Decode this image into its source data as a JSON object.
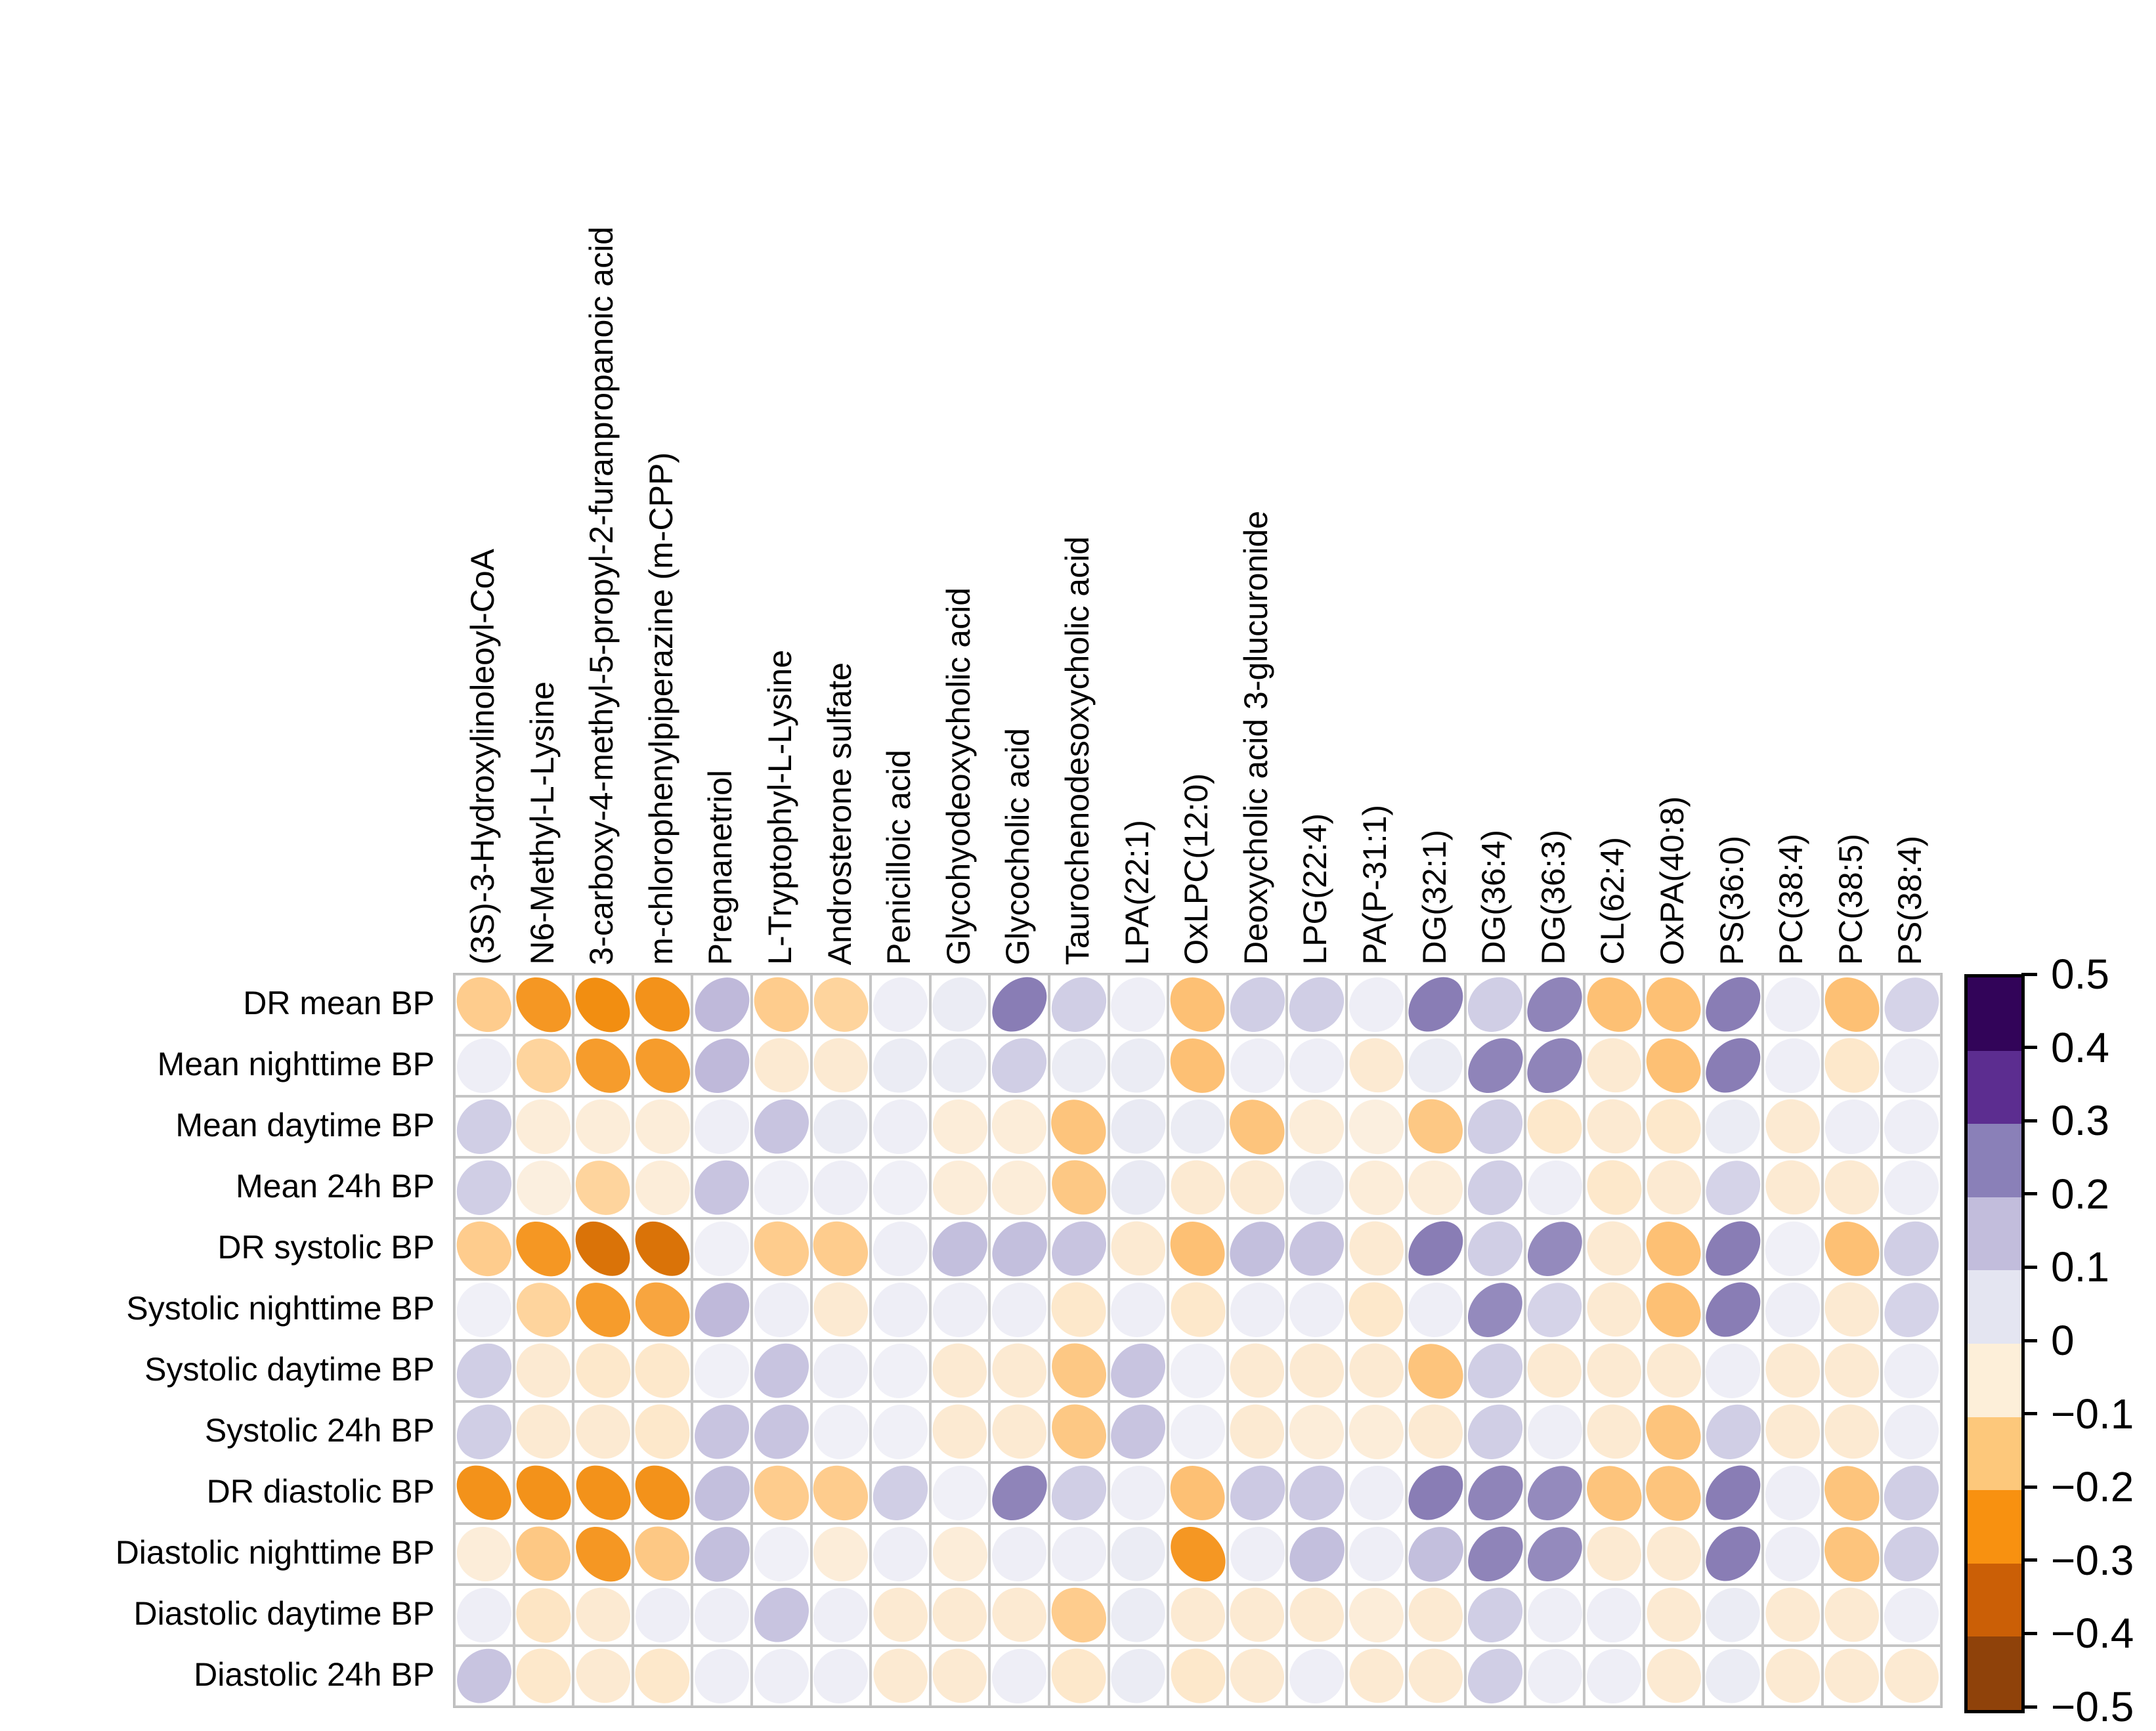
{
  "figure": {
    "background": "#ffffff",
    "grid_color": "#c5c5c5",
    "colorbar_border_color": "#000000",
    "text_color": "#000000"
  },
  "chart_data": {
    "type": "heatmap",
    "subtype": "correlation-ellipse-matrix",
    "title": "",
    "xlabel": "",
    "ylabel": "",
    "value_range": [
      -0.5,
      0.5
    ],
    "legend_position": "right",
    "grid": true,
    "rows": [
      "DR mean BP",
      "Mean nighttime BP",
      "Mean daytime BP",
      "Mean 24h BP",
      "DR systolic BP",
      "Systolic nighttime BP",
      "Systolic daytime BP",
      "Systolic 24h BP",
      "DR diastolic BP",
      "Diastolic nighttime BP",
      "Diastolic daytime BP",
      "Diastolic 24h BP"
    ],
    "columns": [
      "(3S)-3-Hydroxylinoleoyl-CoA",
      "N6-Methyl-L-Lysine",
      "3-carboxy-4-methyl-5-propyl-2-furanpropanoic acid",
      "m-chlorophenylpiperazine (m-CPP)",
      "Pregnanetriol",
      "L-Tryptophyl-L-Lysine",
      "Androsterone sulfate",
      "Penicilloic acid",
      "Glycohyodeoxycholic acid",
      "Glycocholic acid",
      "Taurochenodesoxycholic acid",
      "LPA(22:1)",
      "OxLPC(12:0)",
      "Deoxycholic acid 3-glucuronide",
      "LPG(22:4)",
      "PA(P-31:1)",
      "DG(32:1)",
      "DG(36:4)",
      "DG(36:3)",
      "CL(62:4)",
      "OxPA(40:8)",
      "PS(36:0)",
      "PC(38:4)",
      "PC(38:5)",
      "PS(38:4)"
    ],
    "values": [
      [
        -0.15,
        -0.27,
        -0.29,
        -0.28,
        0.18,
        -0.15,
        -0.13,
        0.05,
        0.06,
        0.28,
        0.14,
        0.05,
        -0.18,
        0.14,
        0.14,
        0.05,
        0.28,
        0.14,
        0.27,
        -0.18,
        -0.18,
        0.28,
        0.05,
        -0.18,
        0.13
      ],
      [
        0.05,
        -0.13,
        -0.26,
        -0.26,
        0.18,
        -0.06,
        -0.06,
        0.06,
        0.06,
        0.14,
        0.06,
        0.06,
        -0.18,
        0.05,
        0.05,
        -0.06,
        0.06,
        0.27,
        0.27,
        -0.06,
        -0.18,
        0.28,
        0.05,
        -0.07,
        0.05
      ],
      [
        0.14,
        -0.05,
        -0.05,
        -0.05,
        0.05,
        0.16,
        0.06,
        0.05,
        -0.05,
        -0.05,
        -0.17,
        0.07,
        0.06,
        -0.17,
        -0.05,
        -0.04,
        -0.16,
        0.14,
        -0.07,
        -0.06,
        -0.07,
        0.06,
        -0.06,
        0.05,
        0.05
      ],
      [
        0.14,
        -0.04,
        -0.13,
        -0.05,
        0.16,
        0.04,
        0.05,
        0.04,
        -0.05,
        -0.05,
        -0.16,
        0.07,
        -0.06,
        -0.06,
        0.06,
        -0.05,
        -0.05,
        0.14,
        0.05,
        -0.07,
        -0.06,
        0.13,
        -0.06,
        -0.06,
        0.05
      ],
      [
        -0.15,
        -0.27,
        -0.35,
        -0.35,
        0.04,
        -0.15,
        -0.15,
        0.05,
        0.17,
        0.17,
        0.16,
        -0.06,
        -0.18,
        0.17,
        0.16,
        -0.06,
        0.28,
        0.14,
        0.26,
        -0.06,
        -0.18,
        0.28,
        0.04,
        -0.18,
        0.14
      ],
      [
        0.04,
        -0.13,
        -0.26,
        -0.24,
        0.18,
        0.05,
        -0.06,
        0.05,
        0.05,
        0.05,
        -0.07,
        0.05,
        -0.07,
        0.05,
        0.05,
        -0.07,
        0.05,
        0.26,
        0.13,
        -0.06,
        -0.18,
        0.28,
        0.05,
        -0.06,
        0.13
      ],
      [
        0.14,
        -0.06,
        -0.07,
        -0.07,
        0.04,
        0.16,
        0.05,
        0.04,
        -0.06,
        -0.06,
        -0.16,
        0.16,
        0.04,
        -0.06,
        -0.06,
        -0.06,
        -0.17,
        0.14,
        -0.06,
        -0.06,
        -0.06,
        0.05,
        -0.06,
        -0.06,
        0.05
      ],
      [
        0.14,
        -0.06,
        -0.06,
        -0.07,
        0.16,
        0.16,
        0.04,
        0.04,
        -0.06,
        -0.06,
        -0.16,
        0.16,
        0.04,
        -0.06,
        -0.05,
        -0.05,
        -0.06,
        0.14,
        0.05,
        -0.06,
        -0.17,
        0.14,
        -0.06,
        -0.06,
        0.05
      ],
      [
        -0.28,
        -0.28,
        -0.28,
        -0.28,
        0.17,
        -0.15,
        -0.15,
        0.14,
        0.04,
        0.27,
        0.14,
        0.05,
        -0.18,
        0.15,
        0.15,
        0.05,
        0.28,
        0.27,
        0.26,
        -0.17,
        -0.17,
        0.28,
        0.05,
        -0.17,
        0.14
      ],
      [
        -0.05,
        -0.16,
        -0.27,
        -0.16,
        0.17,
        0.04,
        -0.05,
        0.05,
        -0.05,
        0.05,
        0.05,
        0.06,
        -0.27,
        0.05,
        0.17,
        0.05,
        0.17,
        0.27,
        0.26,
        -0.06,
        -0.06,
        0.28,
        0.05,
        -0.17,
        0.14
      ],
      [
        0.05,
        -0.08,
        -0.06,
        0.05,
        0.05,
        0.16,
        0.05,
        -0.06,
        -0.06,
        -0.06,
        -0.15,
        0.06,
        -0.06,
        -0.06,
        -0.06,
        -0.05,
        -0.06,
        0.14,
        0.05,
        0.05,
        -0.06,
        0.06,
        -0.06,
        -0.06,
        0.05
      ],
      [
        0.16,
        -0.07,
        -0.06,
        -0.07,
        0.05,
        0.05,
        0.05,
        -0.06,
        -0.06,
        0.05,
        -0.07,
        0.06,
        -0.07,
        -0.06,
        0.05,
        -0.06,
        -0.06,
        0.14,
        0.05,
        0.05,
        -0.06,
        0.06,
        -0.06,
        -0.06,
        -0.06
      ]
    ],
    "colorbar": {
      "tick_labels": [
        "0.5",
        "0.4",
        "0.3",
        "0.2",
        "0.1",
        "0",
        "−0.1",
        "−0.2",
        "−0.3",
        "−0.4",
        "−0.5"
      ],
      "segment_colors": [
        "#320459",
        "#5c2d90",
        "#8a80b8",
        "#c2bddc",
        "#e4e5f1",
        "#fdefd9",
        "#fdc87b",
        "#f89110",
        "#cb5f06",
        "#8f420a"
      ]
    },
    "palette_stops": [
      {
        "v": -0.5,
        "c": "#8f420a"
      },
      {
        "v": -0.4,
        "c": "#c35c08"
      },
      {
        "v": -0.3,
        "c": "#f18908"
      },
      {
        "v": -0.2,
        "c": "#fdb863"
      },
      {
        "v": -0.1,
        "c": "#fee0b6"
      },
      {
        "v": 0,
        "c": "#f9f9fb"
      },
      {
        "v": 0.1,
        "c": "#e2e3f0"
      },
      {
        "v": 0.2,
        "c": "#b6afd5"
      },
      {
        "v": 0.3,
        "c": "#7e71ad"
      },
      {
        "v": 0.4,
        "c": "#5c2d90"
      },
      {
        "v": 0.5,
        "c": "#320459"
      }
    ]
  }
}
